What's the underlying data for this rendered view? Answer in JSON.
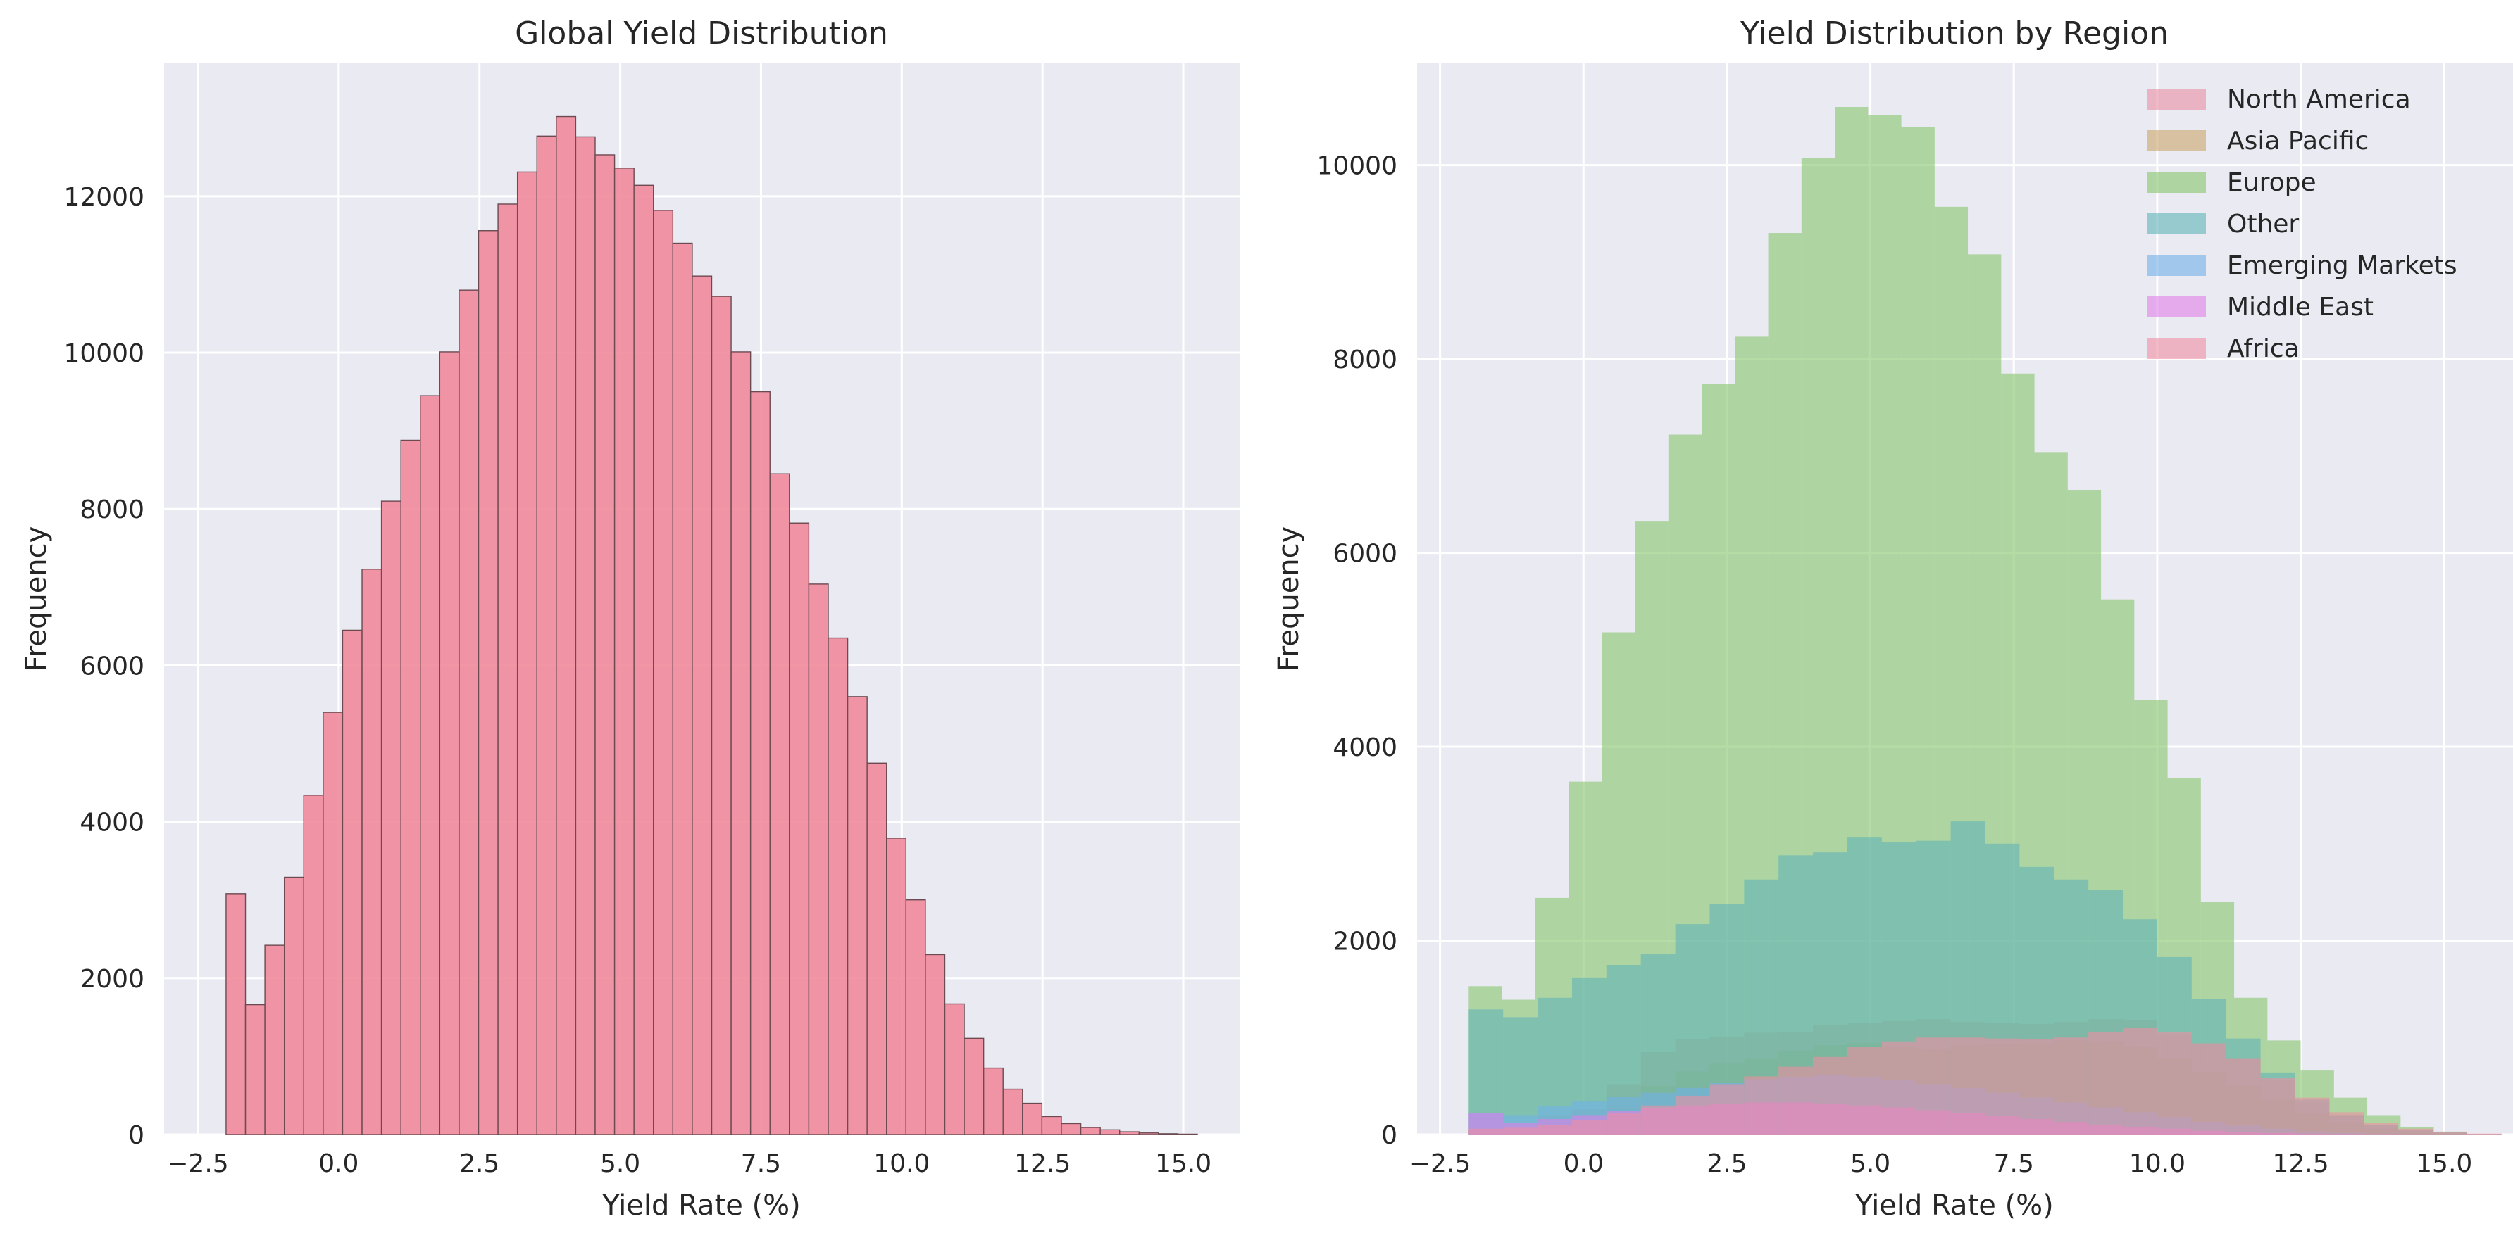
{
  "figure": {
    "background": "#ffffff",
    "axes_background": "#eaeaf2",
    "grid_color": "#ffffff"
  },
  "chart_data": [
    {
      "type": "bar",
      "subtype": "histogram",
      "title": "Global Yield Distribution",
      "xlabel": "Yield Rate (%)",
      "ylabel": "Frequency",
      "xlim": [
        -3.1,
        16.0
      ],
      "ylim": [
        0,
        13700
      ],
      "xticks": [
        -2.5,
        0.0,
        2.5,
        5.0,
        7.5,
        10.0,
        12.5,
        15.0
      ],
      "xtick_labels": [
        "−2.5",
        "0.0",
        "2.5",
        "5.0",
        "7.5",
        "10.0",
        "12.5",
        "15.0"
      ],
      "yticks": [
        0,
        2000,
        4000,
        6000,
        8000,
        10000,
        12000
      ],
      "ytick_labels": [
        "0",
        "2000",
        "4000",
        "6000",
        "8000",
        "10000",
        "12000"
      ],
      "grid": true,
      "bar_color": "#f0879a",
      "edge_color": "#6b4a52",
      "bin_start": -2.0,
      "bin_width": 0.345,
      "values": [
        3080,
        1660,
        2420,
        3290,
        4340,
        5400,
        6450,
        7230,
        8100,
        8880,
        9450,
        10010,
        10800,
        11560,
        11900,
        12310,
        12770,
        13020,
        12760,
        12530,
        12360,
        12140,
        11820,
        11400,
        10980,
        10720,
        10010,
        9500,
        8450,
        7820,
        7040,
        6350,
        5600,
        4750,
        3790,
        3000,
        2300,
        1670,
        1230,
        850,
        580,
        400,
        230,
        140,
        90,
        60,
        35,
        20,
        10,
        5
      ]
    },
    {
      "type": "bar",
      "subtype": "overlapping-histogram",
      "title": "Yield Distribution by Region",
      "xlabel": "Yield Rate (%)",
      "ylabel": "Frequency",
      "xlim": [
        -2.9,
        16.2
      ],
      "ylim": [
        0,
        11050
      ],
      "xticks": [
        -2.5,
        0.0,
        2.5,
        5.0,
        7.5,
        10.0,
        12.5,
        15.0
      ],
      "xtick_labels": [
        "−2.5",
        "0.0",
        "2.5",
        "5.0",
        "7.5",
        "10.0",
        "12.5",
        "15.0"
      ],
      "yticks": [
        0,
        2000,
        4000,
        6000,
        8000,
        10000
      ],
      "ytick_labels": [
        "0",
        "2000",
        "4000",
        "6000",
        "8000",
        "10000"
      ],
      "grid": true,
      "legend_position": "top-right",
      "series": [
        {
          "name": "North America",
          "color": "#e98ea3",
          "bin_start": -2.0,
          "bin_width": 0.6,
          "values": [
            50,
            80,
            200,
            260,
            520,
            850,
            980,
            1010,
            1050,
            1060,
            1130,
            1150,
            1170,
            1190,
            1160,
            1150,
            1140,
            1160,
            1190,
            1180,
            1030,
            930,
            780,
            560,
            330,
            200,
            100,
            50,
            20,
            5
          ]
        },
        {
          "name": "Asia Pacific",
          "color": "#c9a56a",
          "bin_start": -2.0,
          "bin_width": 0.6,
          "values": [
            50,
            60,
            120,
            180,
            300,
            500,
            650,
            730,
            780,
            860,
            920,
            940,
            900,
            880,
            920,
            930,
            940,
            970,
            960,
            900,
            790,
            650,
            500,
            360,
            220,
            120,
            60,
            30,
            10,
            5
          ]
        },
        {
          "name": "Europe",
          "color": "#86c56a",
          "bin_start": -2.0,
          "bin_width": 0.58,
          "values": [
            1530,
            1390,
            2440,
            3640,
            5180,
            6330,
            7220,
            7740,
            8230,
            9300,
            10070,
            10600,
            10520,
            10390,
            9570,
            9080,
            7850,
            7040,
            6650,
            5520,
            4480,
            3680,
            2400,
            1410,
            970,
            660,
            380,
            200,
            80,
            30
          ]
        },
        {
          "name": "Other",
          "color": "#5fb4b8",
          "bin_start": -2.0,
          "bin_width": 0.6,
          "values": [
            1290,
            1210,
            1410,
            1620,
            1750,
            1860,
            2170,
            2380,
            2630,
            2880,
            2910,
            3070,
            3020,
            3030,
            3230,
            3000,
            2760,
            2630,
            2520,
            2220,
            1830,
            1400,
            990,
            640,
            360,
            200,
            100,
            50,
            20,
            5
          ]
        },
        {
          "name": "Emerging Markets",
          "color": "#6fb0e8",
          "bin_start": -2.0,
          "bin_width": 0.6,
          "values": [
            220,
            200,
            290,
            340,
            390,
            430,
            480,
            530,
            570,
            590,
            610,
            590,
            560,
            520,
            480,
            430,
            380,
            330,
            280,
            230,
            180,
            130,
            90,
            60,
            30,
            15,
            5,
            2,
            1,
            0
          ]
        },
        {
          "name": "Middle East",
          "color": "#e07fe8",
          "bin_start": -2.0,
          "bin_width": 0.6,
          "values": [
            220,
            120,
            160,
            200,
            240,
            270,
            300,
            320,
            330,
            330,
            320,
            300,
            280,
            250,
            220,
            190,
            160,
            130,
            100,
            80,
            60,
            40,
            25,
            15,
            8,
            4,
            2,
            1,
            0,
            0
          ]
        },
        {
          "name": "Africa",
          "color": "#ef8ea2",
          "bin_start": -2.0,
          "bin_width": 0.6,
          "values": [
            60,
            70,
            100,
            150,
            220,
            300,
            400,
            520,
            600,
            700,
            800,
            900,
            960,
            1000,
            1000,
            990,
            980,
            1000,
            1060,
            1100,
            1060,
            940,
            780,
            580,
            380,
            230,
            120,
            60,
            25,
            10
          ]
        }
      ]
    }
  ]
}
